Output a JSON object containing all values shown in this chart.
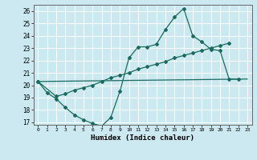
{
  "title": "",
  "xlabel": "Humidex (Indice chaleur)",
  "bg_color": "#cce8f0",
  "grid_color": "#ffffff",
  "line_color": "#1a6b5e",
  "xlim": [
    -0.5,
    23.5
  ],
  "ylim": [
    16.8,
    26.5
  ],
  "yticks": [
    17,
    18,
    19,
    20,
    21,
    22,
    23,
    24,
    25,
    26
  ],
  "xticks": [
    0,
    1,
    2,
    3,
    4,
    5,
    6,
    7,
    8,
    9,
    10,
    11,
    12,
    13,
    14,
    15,
    16,
    17,
    18,
    19,
    20,
    21,
    22,
    23
  ],
  "line1_x": [
    0,
    1,
    2,
    3,
    4,
    5,
    6,
    7,
    8,
    9,
    10,
    11,
    12,
    13,
    14,
    15,
    16,
    17,
    18,
    19,
    20,
    21,
    22
  ],
  "line1_y": [
    20.3,
    19.4,
    18.9,
    18.2,
    17.6,
    17.2,
    16.9,
    16.7,
    17.4,
    19.5,
    22.2,
    23.1,
    23.1,
    23.3,
    24.5,
    25.5,
    26.2,
    24.0,
    23.5,
    22.9,
    22.8,
    20.5,
    20.5
  ],
  "line2_x": [
    0,
    2,
    3,
    4,
    5,
    6,
    7,
    8,
    9,
    10,
    11,
    12,
    13,
    14,
    15,
    16,
    17,
    18,
    19,
    20,
    21
  ],
  "line2_y": [
    20.3,
    19.1,
    19.3,
    19.6,
    19.8,
    20.0,
    20.3,
    20.6,
    20.8,
    21.0,
    21.3,
    21.5,
    21.7,
    21.9,
    22.2,
    22.4,
    22.6,
    22.8,
    23.0,
    23.2,
    23.4
  ],
  "line3_x": [
    0,
    23
  ],
  "line3_y": [
    20.3,
    20.5
  ]
}
